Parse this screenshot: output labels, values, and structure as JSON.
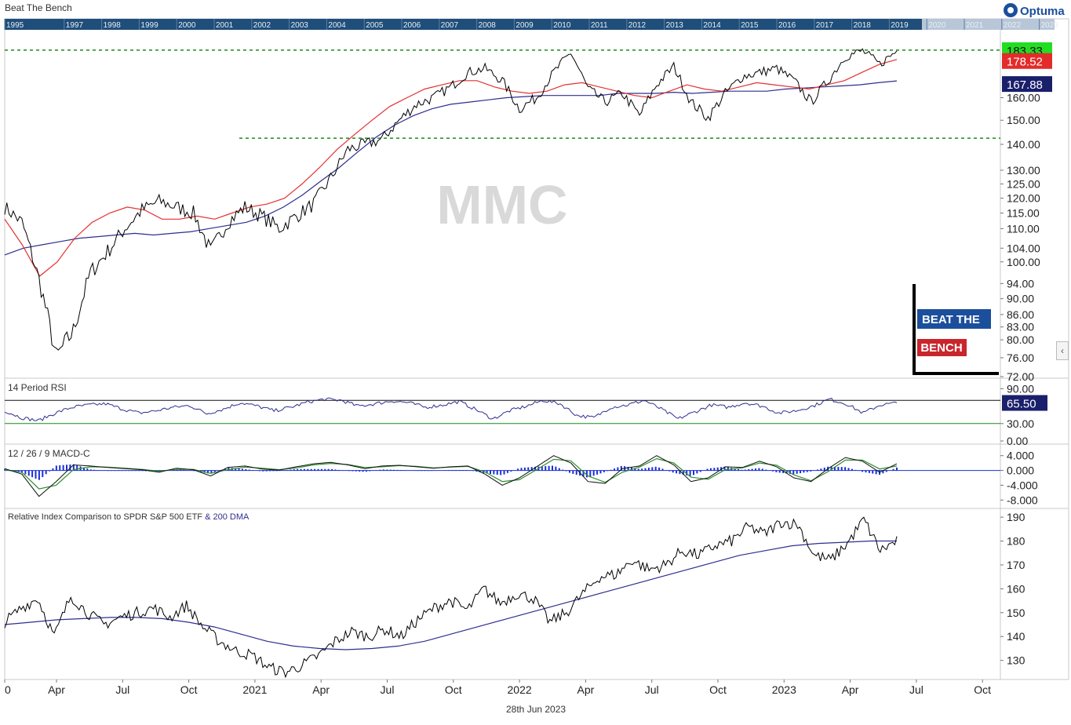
{
  "header": {
    "title": "Beat The Bench",
    "logo_text": "Optuma",
    "footer_date": "28th Jun 2023"
  },
  "watermark": "MMC",
  "brand_badge": {
    "line1": "BEAT THE",
    "line2": "BENCH"
  },
  "colors": {
    "price": "#000000",
    "ma_fast": "#e53030",
    "ma_slow": "#2e2e8f",
    "support_line": "#1a8a1a",
    "badge_blue": "#1b4f9c",
    "badge_red": "#c8262c",
    "label_green": "#22dd22",
    "label_red": "#e32b2b",
    "label_navy": "#1a1f6b",
    "macd_hist": "#1a2fd6",
    "macd_line": "#111111",
    "signal_line": "#2e8f2e",
    "overview_bg": "#1f4e7a"
  },
  "chart_data": [
    {
      "id": "price",
      "type": "line",
      "title": "MMC",
      "scale": "log",
      "ylim": [
        72,
        190
      ],
      "x_tick_labels": [
        "0",
        "Apr",
        "Jul",
        "Oct",
        "2021",
        "Apr",
        "Jul",
        "Oct",
        "2022",
        "Apr",
        "Jul",
        "Oct",
        "2023",
        "Apr",
        "Jul",
        "Oct"
      ],
      "y_tick_labels": [
        "160.00",
        "150.00",
        "140.00",
        "130.00",
        "125.00",
        "120.00",
        "115.00",
        "110.00",
        "104.00",
        "100.00",
        "94.00",
        "90.00",
        "86.00",
        "83.00",
        "80.00",
        "76.00",
        "72.00"
      ],
      "series": [
        {
          "values": [
            117,
            112,
            95,
            76,
            82,
            97,
            103,
            110,
            116,
            119,
            117,
            115,
            103,
            112,
            117,
            114,
            110,
            114,
            118,
            127,
            138,
            140,
            142,
            150,
            157,
            160,
            165,
            172,
            174,
            168,
            155,
            160,
            172,
            182,
            164,
            158,
            162,
            152,
            166,
            175,
            158,
            151,
            162,
            170,
            172,
            174,
            168,
            158,
            168,
            180,
            183,
            176,
            183
          ]
        },
        {
          "values": [
            113,
            105,
            96,
            100,
            107,
            112,
            115,
            117,
            116,
            113,
            113,
            114,
            113,
            115,
            117,
            118,
            120,
            125,
            131,
            138,
            144,
            150,
            156,
            160,
            164,
            166,
            168,
            168,
            165,
            163,
            162,
            163,
            166,
            167,
            165,
            163,
            161,
            160,
            163,
            166,
            164,
            163,
            165,
            167,
            166,
            165,
            164,
            166,
            168,
            172,
            176,
            178.5
          ]
        },
        {
          "values": [
            102,
            104,
            105,
            106,
            107,
            107.5,
            108,
            108.5,
            108,
            108.5,
            109,
            110,
            111,
            112,
            114,
            117,
            121,
            126,
            131,
            137,
            143,
            148,
            152,
            155,
            157,
            158,
            159,
            160,
            160.5,
            161,
            161,
            161,
            161,
            162,
            162,
            162,
            162.5,
            162,
            162.5,
            163,
            163,
            163,
            164,
            164.5,
            165,
            165.5,
            166,
            167,
            167.88
          ]
        }
      ],
      "reference_lines": [
        183.33,
        142.5
      ],
      "last_values": [
        "183.33",
        "178.52",
        "167.88"
      ]
    },
    {
      "id": "rsi",
      "type": "line",
      "title": "14 Period RSI",
      "ylim": [
        0,
        100
      ],
      "y_tick_labels": [
        "90.00",
        "30.00",
        "0.00"
      ],
      "levels": [
        70,
        30
      ],
      "series": [
        {
          "values": [
            52,
            40,
            35,
            48,
            58,
            62,
            64,
            55,
            48,
            52,
            58,
            61,
            47,
            55,
            66,
            60,
            52,
            58,
            67,
            72,
            70,
            60,
            64,
            69,
            66,
            58,
            62,
            68,
            54,
            38,
            52,
            60,
            70,
            64,
            44,
            40,
            58,
            62,
            70,
            55,
            38,
            50,
            62,
            58,
            66,
            60,
            48,
            52,
            60,
            72,
            64,
            48,
            62,
            65.5
          ]
        }
      ],
      "last_value": "65.50"
    },
    {
      "id": "macd",
      "type": "line",
      "title": "12 / 26 / 9 MACD-C",
      "ylim": [
        -9,
        5
      ],
      "y_tick_labels": [
        "4.000",
        "0.000",
        "-4.000",
        "-8.000"
      ],
      "series": [
        {
          "values": [
            0.5,
            -1,
            -7,
            -3,
            1.5,
            1.2,
            0.8,
            0.5,
            0.2,
            -0.5,
            0.6,
            0.2,
            -1.5,
            0.8,
            1.2,
            0.4,
            0.1,
            1.0,
            1.8,
            2.2,
            1.5,
            0.5,
            1.2,
            1.4,
            1.0,
            0.6,
            1.0,
            1.2,
            -1.0,
            -4.0,
            -2.0,
            1.0,
            4.0,
            2.0,
            -3.0,
            -3.5,
            0.5,
            1.2,
            4.0,
            1.5,
            -3.0,
            -2.0,
            1.0,
            0.8,
            2.5,
            1.0,
            -2.0,
            -3.0,
            0.5,
            3.5,
            2.5,
            -0.5,
            1.8
          ]
        },
        {
          "values": [
            0.2,
            -0.5,
            -5,
            -4,
            0.2,
            1.0,
            0.9,
            0.6,
            0.3,
            -0.2,
            0.3,
            0.3,
            -0.8,
            0.2,
            0.9,
            0.6,
            0.2,
            0.7,
            1.5,
            1.9,
            1.6,
            0.8,
            1.0,
            1.3,
            1.1,
            0.7,
            0.9,
            1.1,
            -0.4,
            -3.0,
            -2.5,
            0.2,
            3.0,
            2.6,
            -1.5,
            -3.2,
            -0.5,
            0.9,
            3.2,
            2.0,
            -1.8,
            -2.4,
            0.2,
            0.7,
            2.0,
            1.4,
            -1.2,
            -2.8,
            -0.3,
            2.8,
            2.8,
            0.4,
            1.2
          ]
        }
      ]
    },
    {
      "id": "relative",
      "type": "line",
      "title": "Relative Index Comparison to SPDR S&P 500 ETF",
      "title_suffix": "& 200 DMA",
      "ylim": [
        122,
        193
      ],
      "y_tick_labels": [
        "190",
        "180",
        "170",
        "160",
        "150",
        "140",
        "130"
      ],
      "series": [
        {
          "values": [
            146,
            152,
            156,
            140,
            157,
            150,
            145,
            148,
            150,
            152,
            148,
            153,
            144,
            138,
            134,
            132,
            127,
            125,
            128,
            132,
            138,
            142,
            140,
            143,
            140,
            147,
            152,
            155,
            151,
            160,
            154,
            158,
            156,
            146,
            150,
            158,
            165,
            166,
            172,
            168,
            170,
            176,
            174,
            178,
            180,
            186,
            183,
            188,
            187,
            174,
            172,
            179,
            189,
            176,
            180
          ]
        },
        {
          "values": [
            145,
            146,
            147,
            147.5,
            148,
            148,
            147.5,
            146,
            144,
            141,
            138,
            136,
            135,
            134.5,
            135,
            136,
            138,
            141,
            144,
            147,
            150,
            153,
            156,
            159,
            162,
            165,
            168,
            171,
            174,
            176,
            178,
            179,
            179.5,
            180,
            180
          ]
        }
      ]
    }
  ]
}
